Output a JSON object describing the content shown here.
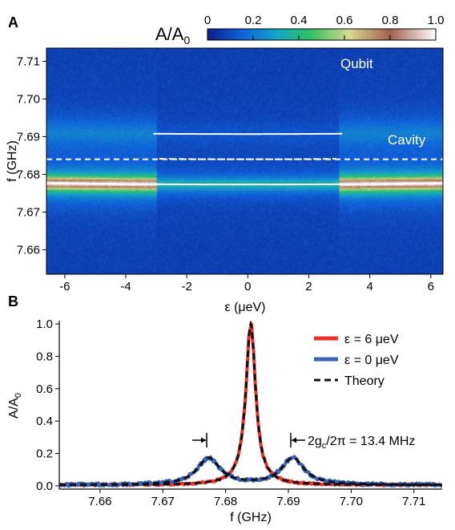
{
  "panel_a": {
    "label": "A",
    "colorbar_title": "A/A",
    "colorbar_title_sub": "0",
    "colorbar_ticks": [
      "0",
      "0.2",
      "0.4",
      "0.6",
      "0.8",
      "1.0"
    ],
    "annotation_qubit": "Qubit",
    "annotation_cavity": "Cavity"
  },
  "panel_b": {
    "label": "B",
    "annotation_prefix": "2g",
    "annotation_sub": "c",
    "annotation_suffix": "/2π = 13.4 MHz"
  },
  "chart_data": [
    {
      "type": "heatmap",
      "xlabel": "ε (μeV)",
      "ylabel": "f (GHz)",
      "xlim": [
        -6.6,
        6.4
      ],
      "ylim": [
        7.6535,
        7.7135
      ],
      "xticks": [
        -6,
        -4,
        -2,
        0,
        2,
        4,
        6
      ],
      "yticks": [
        7.66,
        7.67,
        7.68,
        7.69,
        7.7,
        7.71
      ],
      "ytick_labels": [
        "7.66",
        "7.67",
        "7.68",
        "7.69",
        "7.70",
        "7.71"
      ],
      "color_scale": {
        "range": [
          0,
          1.0
        ],
        "colors": [
          "#0b1f8c",
          "#1060d8",
          "#16a4c8",
          "#30c060",
          "#d8d890",
          "#a06050",
          "#ffffff"
        ]
      },
      "bare_cavity_frequency_GHz": 7.684,
      "bare_qubit_curve": "f = sqrt(ε² + (2tc)²)/h, minimum 7.684 GHz at ε = 0",
      "dressed_upper_min_GHz": 7.6907,
      "dressed_lower_min_GHz": 7.6773,
      "background_level": 0.08,
      "resonance_peak_level": 1.0,
      "resonance_linewidth_GHz": 0.0015,
      "annotations": [
        "Qubit",
        "Cavity"
      ]
    },
    {
      "type": "line",
      "xlabel": "f (GHz)",
      "ylabel": "A/A",
      "ylabel_sub": "0",
      "xlim": [
        7.6535,
        7.7145
      ],
      "ylim": [
        -0.02,
        1.02
      ],
      "xticks": [
        7.66,
        7.67,
        7.68,
        7.69,
        7.7,
        7.71
      ],
      "xtick_labels": [
        "7.66",
        "7.67",
        "7.68",
        "7.69",
        "7.70",
        "7.71"
      ],
      "yticks": [
        0.0,
        0.2,
        0.4,
        0.6,
        0.8,
        1.0
      ],
      "ytick_labels": [
        "0.0",
        "0.2",
        "0.4",
        "0.6",
        "0.8",
        "1.0"
      ],
      "legend_position": "top-right",
      "series": [
        {
          "name": "ε = 6 μeV",
          "color": "#e8312b",
          "style": "solid",
          "peaks": [
            {
              "x": 7.684,
              "y": 1.0
            }
          ],
          "half_width_GHz": 0.00095,
          "baseline": 0.005
        },
        {
          "name": "ε = 0 μeV",
          "color": "#3a64b8",
          "style": "solid",
          "peaks": [
            {
              "x": 7.6773,
              "y": 0.17
            },
            {
              "x": 7.6907,
              "y": 0.17
            }
          ],
          "half_width_GHz": 0.0022,
          "baseline": 0.005
        },
        {
          "name": "Theory",
          "color": "#111111",
          "style": "dashed",
          "peaks": [
            {
              "x": 7.684,
              "y": 1.0
            },
            {
              "x": 7.6773,
              "y": 0.17
            },
            {
              "x": 7.6907,
              "y": 0.17
            }
          ]
        }
      ],
      "splitting_MHz": 13.4
    }
  ]
}
